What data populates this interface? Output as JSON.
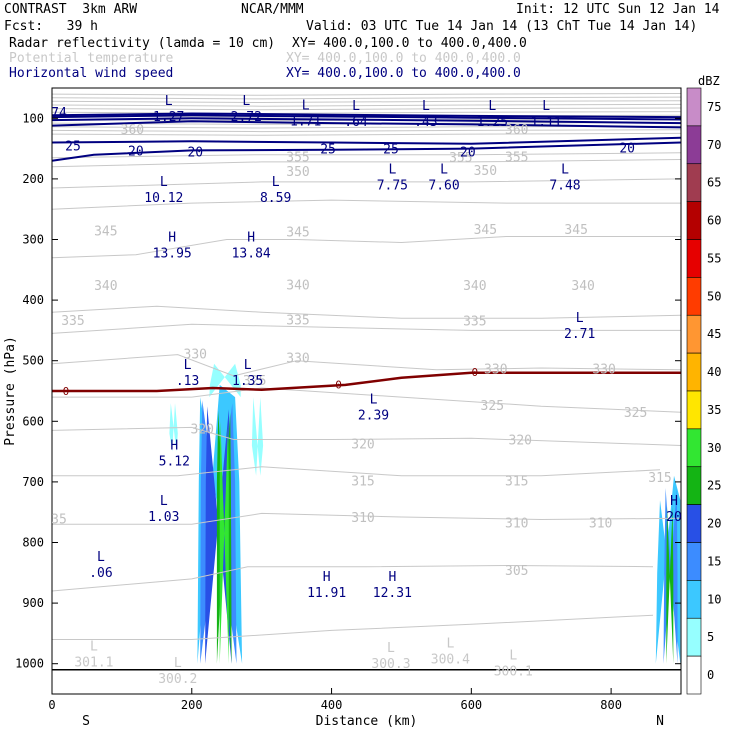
{
  "header": {
    "model": "CONTRAST  3km ARW",
    "org": "NCAR/MMM",
    "init": "Init: 12 UTC Sun 12 Jan 14",
    "fcst": "Fcst:   39 h",
    "valid": "Valid: 03 UTC Tue 14 Jan 14 (13 ChT Tue 14 Jan 14)",
    "fields": [
      {
        "label": "Radar reflectivity (lamda = 10 cm)",
        "xy": "XY= 400.0,100.0 to 400.0,400.0",
        "color": "#000000"
      },
      {
        "label": "Potential temperature",
        "xy": "XY= 400.0,100.0 to 400.0,400.0",
        "color": "#c8c8c8"
      },
      {
        "label": "Horizontal wind speed",
        "xy": "XY= 400.0,100.0 to 400.0,400.0",
        "color": "#000080"
      }
    ]
  },
  "chart_data": {
    "type": "cross_section",
    "xlabel": "Distance (km)",
    "ylabel": "Pressure (hPa)",
    "xlim": [
      0,
      900
    ],
    "ylim": [
      1050,
      50
    ],
    "xticks": [
      0,
      200,
      400,
      600,
      800
    ],
    "yticks": [
      100,
      200,
      300,
      400,
      500,
      600,
      700,
      800,
      900,
      1000
    ],
    "end_labels": {
      "left": "S",
      "right": "N"
    },
    "colorbar": {
      "unit": "dBZ",
      "levels": [
        0,
        5,
        10,
        15,
        20,
        25,
        30,
        35,
        40,
        45,
        50,
        55,
        60,
        65,
        70,
        75
      ],
      "colors": [
        "#ffffff",
        "#96ffff",
        "#3cc8ff",
        "#3c8cff",
        "#2850e6",
        "#14b414",
        "#32e632",
        "#ffe600",
        "#ffb400",
        "#ff9632",
        "#ff3c00",
        "#e60000",
        "#b40000",
        "#a03c50",
        "#8c3c96",
        "#c88cc8"
      ]
    },
    "theta_labels": [
      {
        "v": "350",
        "x": 352,
        "p": 187
      },
      {
        "v": "350",
        "x": 620,
        "p": 185
      },
      {
        "v": "355",
        "x": 352,
        "p": 163
      },
      {
        "v": "355",
        "x": 585,
        "p": 164
      },
      {
        "v": "355",
        "x": 665,
        "p": 163
      },
      {
        "v": "360",
        "x": 115,
        "p": 118
      },
      {
        "v": "360",
        "x": 665,
        "p": 118
      },
      {
        "v": "345",
        "x": 77,
        "p": 285
      },
      {
        "v": "345",
        "x": 352,
        "p": 287
      },
      {
        "v": "345",
        "x": 620,
        "p": 283
      },
      {
        "v": "345",
        "x": 750,
        "p": 283
      },
      {
        "v": "340",
        "x": 77,
        "p": 375
      },
      {
        "v": "340",
        "x": 352,
        "p": 374
      },
      {
        "v": "340",
        "x": 605,
        "p": 375
      },
      {
        "v": "340",
        "x": 760,
        "p": 375
      },
      {
        "v": "335",
        "x": 30,
        "p": 433
      },
      {
        "v": "335",
        "x": 352,
        "p": 432
      },
      {
        "v": "335",
        "x": 605,
        "p": 434
      },
      {
        "v": "330",
        "x": 205,
        "p": 488
      },
      {
        "v": "330",
        "x": 352,
        "p": 495
      },
      {
        "v": "330",
        "x": 635,
        "p": 513
      },
      {
        "v": "330",
        "x": 790,
        "p": 513
      },
      {
        "v": "325",
        "x": 290,
        "p": 532
      },
      {
        "v": "325",
        "x": 630,
        "p": 573
      },
      {
        "v": "325",
        "x": 835,
        "p": 585
      },
      {
        "v": "320",
        "x": 215,
        "p": 612
      },
      {
        "v": "320",
        "x": 445,
        "p": 637
      },
      {
        "v": "320",
        "x": 670,
        "p": 630
      },
      {
        "v": "315",
        "x": 445,
        "p": 698
      },
      {
        "v": "315",
        "x": 665,
        "p": 698
      },
      {
        "v": "315",
        "x": 870,
        "p": 692
      },
      {
        "v": "310",
        "x": 445,
        "p": 758
      },
      {
        "v": "310",
        "x": 665,
        "p": 767
      },
      {
        "v": "310",
        "x": 785,
        "p": 767
      },
      {
        "v": "305",
        "x": 665,
        "p": 845
      },
      {
        "v": "35",
        "x": 10,
        "p": 760
      }
    ],
    "wind_labels": [
      {
        "v": "25",
        "x": 30,
        "p": 145
      },
      {
        "v": "20",
        "x": 120,
        "p": 153
      },
      {
        "v": "20",
        "x": 205,
        "p": 155
      },
      {
        "v": "25",
        "x": 395,
        "p": 150
      },
      {
        "v": "25",
        "x": 485,
        "p": 150
      },
      {
        "v": "20",
        "x": 595,
        "p": 155
      },
      {
        "v": "20",
        "x": 823,
        "p": 148
      },
      {
        "v": "74",
        "x": 10,
        "p": 90
      }
    ],
    "extrema": [
      {
        "type": "L",
        "value": "1.27",
        "x": 167,
        "p": 85
      },
      {
        "type": "L",
        "value": "2.72",
        "x": 278,
        "p": 85
      },
      {
        "type": "L",
        "value": "1.71",
        "x": 363,
        "p": 92
      },
      {
        "type": "L",
        "value": ".64",
        "x": 435,
        "p": 93
      },
      {
        "type": "L",
        "value": ".43",
        "x": 535,
        "p": 93
      },
      {
        "type": "L",
        "value": "1.25",
        "x": 630,
        "p": 93
      },
      {
        "type": "L",
        "value": "1.11",
        "x": 707,
        "p": 93
      },
      {
        "type": "L",
        "value": "10.12",
        "x": 160,
        "p": 218
      },
      {
        "type": "L",
        "value": "8.59",
        "x": 320,
        "p": 218
      },
      {
        "type": "L",
        "value": "7.75",
        "x": 487,
        "p": 198
      },
      {
        "type": "L",
        "value": "7.60",
        "x": 561,
        "p": 198
      },
      {
        "type": "L",
        "value": "7.48",
        "x": 734,
        "p": 198
      },
      {
        "type": "H",
        "value": "13.95",
        "x": 172,
        "p": 310
      },
      {
        "type": "H",
        "value": "13.84",
        "x": 285,
        "p": 310
      },
      {
        "type": "L",
        "value": "2.71",
        "x": 755,
        "p": 443
      },
      {
        "type": "L",
        "value": ".13",
        "x": 194,
        "p": 520
      },
      {
        "type": "L",
        "value": "1.35",
        "x": 280,
        "p": 520
      },
      {
        "type": "L",
        "value": "2.39",
        "x": 460,
        "p": 577
      },
      {
        "type": "H",
        "value": "5.12",
        "x": 175,
        "p": 653
      },
      {
        "type": "L",
        "value": "1.03",
        "x": 160,
        "p": 745
      },
      {
        "type": "L",
        "value": ".06",
        "x": 70,
        "p": 837
      },
      {
        "type": "H",
        "value": "11.91",
        "x": 393,
        "p": 870
      },
      {
        "type": "H",
        "value": "12.31",
        "x": 487,
        "p": 870
      },
      {
        "type": "H",
        "value": "20",
        "x": 890,
        "p": 745
      },
      {
        "type": "L",
        "value": "301.1",
        "x": 60,
        "p": 985,
        "color": "#c8c8c8"
      },
      {
        "type": "L",
        "value": "300.2",
        "x": 180,
        "p": 1012,
        "color": "#c8c8c8"
      },
      {
        "type": "L",
        "value": "300.3",
        "x": 485,
        "p": 987,
        "color": "#c8c8c8"
      },
      {
        "type": "L",
        "value": "300.4",
        "x": 570,
        "p": 980,
        "color": "#c8c8c8"
      },
      {
        "type": "L",
        "value": "300.1",
        "x": 660,
        "p": 1000,
        "color": "#c8c8c8"
      }
    ],
    "zero_isotherm_labels": [
      {
        "v": "0",
        "x": 20,
        "p": 548
      },
      {
        "v": "0",
        "x": 410,
        "p": 538
      },
      {
        "v": "0",
        "x": 605,
        "p": 517
      }
    ]
  }
}
